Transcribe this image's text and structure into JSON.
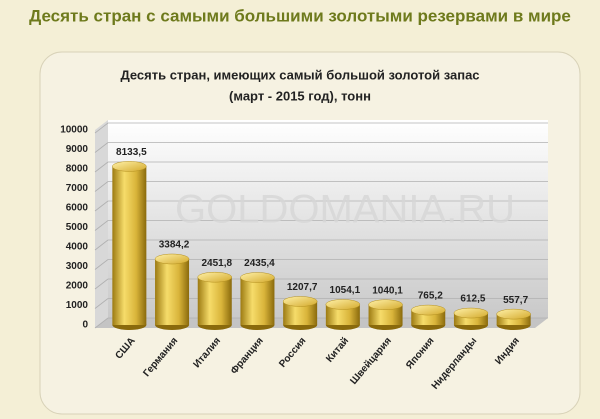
{
  "header": {
    "title": "Десять стран с самыми большими золотыми резервами в мире"
  },
  "chart_data": {
    "type": "bar",
    "title": "Десять стран, имеющих самый большой золотой запас",
    "subtitle": "(март - 2015 год), тонн",
    "watermark": "GOLDOMANIA.RU",
    "categories": [
      "США",
      "Германия",
      "Италия",
      "Франция",
      "Россия",
      "Китай",
      "Швейцария",
      "Япония",
      "Нидерланды",
      "Индия"
    ],
    "values": [
      8133.5,
      3384.2,
      2451.8,
      2435.4,
      1207.7,
      1054.1,
      1040.1,
      765.2,
      612.5,
      557.7
    ],
    "value_labels": [
      "8133,5",
      "3384,2",
      "2451,8",
      "2435,4",
      "1207,7",
      "1054,1",
      "1040,1",
      "765,2",
      "612,5",
      "557,7"
    ],
    "color": "#d9b43a",
    "ylim": [
      0,
      10000
    ],
    "yticks": [
      0,
      1000,
      2000,
      3000,
      4000,
      5000,
      6000,
      7000,
      8000,
      9000,
      10000
    ],
    "grid": true
  }
}
